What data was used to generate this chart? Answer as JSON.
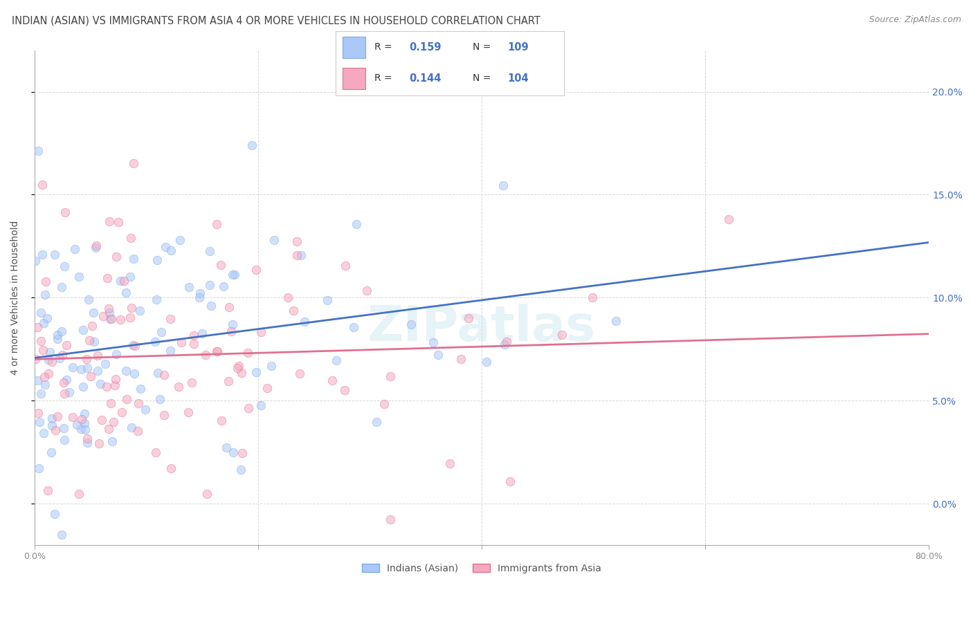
{
  "title": "INDIAN (ASIAN) VS IMMIGRANTS FROM ASIA 4 OR MORE VEHICLES IN HOUSEHOLD CORRELATION CHART",
  "source": "Source: ZipAtlas.com",
  "ylabel": "4 or more Vehicles in Household",
  "xlim": [
    0.0,
    80.0
  ],
  "ylim": [
    -2.0,
    22.0
  ],
  "yticks": [
    0.0,
    5.0,
    10.0,
    15.0,
    20.0
  ],
  "xticks": [
    0.0,
    20.0,
    40.0,
    60.0,
    80.0
  ],
  "series": [
    {
      "label": "Indians (Asian)",
      "R": 0.159,
      "N": 109,
      "color": "#aac8f8",
      "edge_color": "#7aaae8",
      "line_color": "#4472c4"
    },
    {
      "label": "Immigrants from Asia",
      "R": 0.144,
      "N": 104,
      "color": "#f5a8c0",
      "edge_color": "#e07090",
      "line_color": "#e07090"
    }
  ],
  "legend_box_colors": [
    "#aac8f8",
    "#f5a8c0"
  ],
  "watermark": "ZIPatlas",
  "background_color": "#ffffff",
  "grid_color": "#cccccc",
  "title_color": "#444444",
  "source_color": "#888888",
  "right_ytick_color": "#4472c4",
  "marker_size": 80,
  "alpha": 0.55
}
